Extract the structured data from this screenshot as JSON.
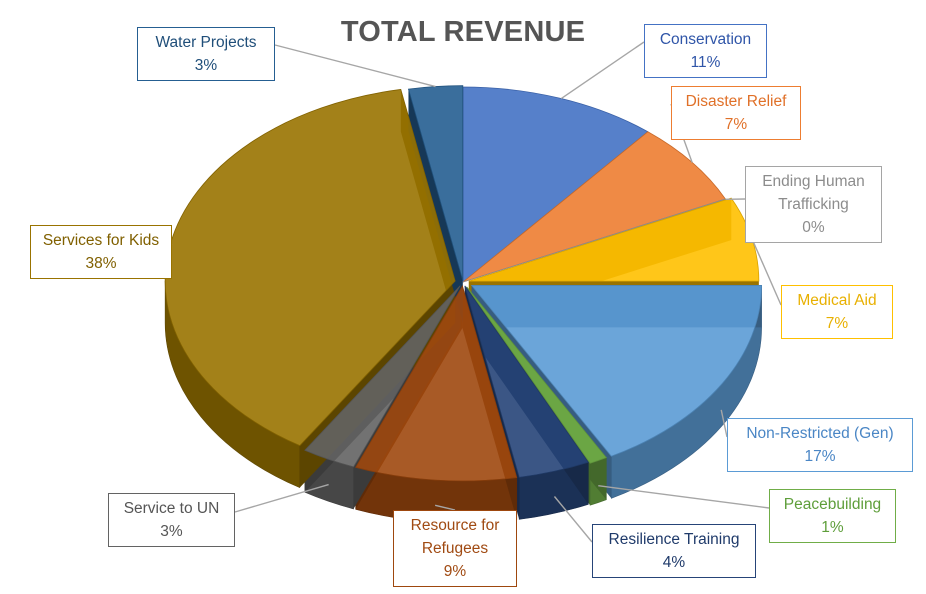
{
  "chart_data": {
    "type": "pie",
    "title": "TOTAL REVENUE",
    "three_d": true,
    "slices": [
      {
        "name": "Conservation",
        "value": 11,
        "label": "11%",
        "color": "#4472C4",
        "text_color": "#2F55A8"
      },
      {
        "name": "Disaster Relief",
        "value": 7,
        "label": "7%",
        "color": "#ED7D31",
        "text_color": "#E07028"
      },
      {
        "name": "Ending Human Trafficking",
        "value": 0,
        "label": "0%",
        "color": "#A5A5A5",
        "text_color": "#8C8C8C"
      },
      {
        "name": "Medical Aid",
        "value": 7,
        "label": "7%",
        "color": "#FFC000",
        "text_color": "#E8B000"
      },
      {
        "name": "Non-Restricted (Gen)",
        "value": 17,
        "label": "17%",
        "color": "#5B9BD5",
        "text_color": "#4A86C5"
      },
      {
        "name": "Peacebuilding",
        "value": 1,
        "label": "1%",
        "color": "#70AD47",
        "text_color": "#5E9E3A"
      },
      {
        "name": "Resilience Training",
        "value": 4,
        "label": "4%",
        "color": "#264478",
        "text_color": "#1F3A6A"
      },
      {
        "name": "Resource for Refugees",
        "value": 9,
        "label": "9%",
        "color": "#9E480E",
        "text_color": "#A04A12"
      },
      {
        "name": "Service to UN",
        "value": 3,
        "label": "3%",
        "color": "#636363",
        "text_color": "#555555"
      },
      {
        "name": "Services for Kids",
        "value": 38,
        "label": "38%",
        "color": "#997300",
        "text_color": "#806000"
      },
      {
        "name": "Water Projects",
        "value": 3,
        "label": "3%",
        "color": "#255E91",
        "text_color": "#1F4E79"
      }
    ],
    "label_lines": [
      {
        "slice": "Conservation",
        "text": [
          "Conservation"
        ]
      },
      {
        "slice": "Disaster Relief",
        "text": [
          "Disaster Relief"
        ]
      },
      {
        "slice": "Ending Human Trafficking",
        "text": [
          "Ending Human",
          "Trafficking"
        ]
      },
      {
        "slice": "Medical Aid",
        "text": [
          "Medical Aid"
        ]
      },
      {
        "slice": "Non-Restricted (Gen)",
        "text": [
          "Non-Restricted (Gen)"
        ]
      },
      {
        "slice": "Peacebuilding",
        "text": [
          "Peacebuilding"
        ]
      },
      {
        "slice": "Resilience Training",
        "text": [
          "Resilience Training"
        ]
      },
      {
        "slice": "Resource for Refugees",
        "text": [
          "Resource for",
          "Refugees"
        ]
      },
      {
        "slice": "Service to UN",
        "text": [
          "Service to UN"
        ]
      },
      {
        "slice": "Services for Kids",
        "text": [
          "Services for Kids"
        ]
      },
      {
        "slice": "Water Projects",
        "text": [
          "Water Projects"
        ]
      }
    ],
    "legend": "none"
  }
}
